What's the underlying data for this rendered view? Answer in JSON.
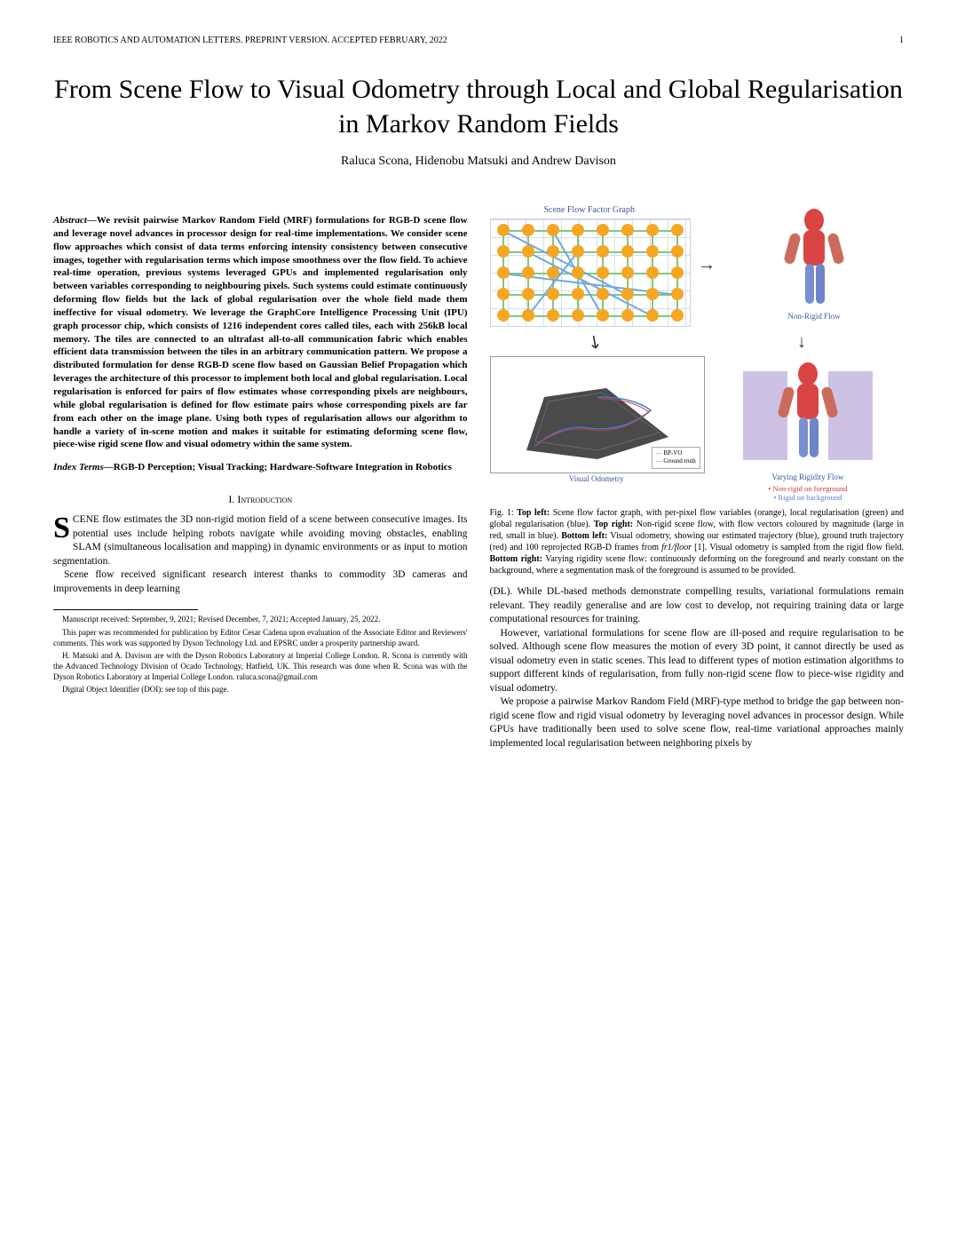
{
  "header": {
    "journal": "IEEE ROBOTICS AND AUTOMATION LETTERS. PREPRINT VERSION. ACCEPTED FEBRUARY, 2022",
    "page": "1"
  },
  "title": "From Scene Flow to Visual Odometry through Local and Global Regularisation in Markov Random Fields",
  "authors": "Raluca Scona, Hidenobu Matsuki and Andrew Davison",
  "abstract_label": "Abstract—",
  "abstract": "We revisit pairwise Markov Random Field (MRF) formulations for RGB-D scene flow and leverage novel advances in processor design for real-time implementations. We consider scene flow approaches which consist of data terms enforcing intensity consistency between consecutive images, together with regularisation terms which impose smoothness over the flow field. To achieve real-time operation, previous systems leveraged GPUs and implemented regularisation only between variables corresponding to neighbouring pixels. Such systems could estimate continuously deforming flow fields but the lack of global regularisation over the whole field made them ineffective for visual odometry. We leverage the GraphCore Intelligence Processing Unit (IPU) graph processor chip, which consists of 1216 independent cores called tiles, each with 256kB local memory. The tiles are connected to an ultrafast all-to-all communication fabric which enables efficient data transmission between the tiles in an arbitrary communication pattern. We propose a distributed formulation for dense RGB-D scene flow based on Gaussian Belief Propagation which leverages the architecture of this processor to implement both local and global regularisation. Local regularisation is enforced for pairs of flow estimates whose corresponding pixels are neighbours, while global regularisation is defined for flow estimate pairs whose corresponding pixels are far from each other on the image plane. Using both types of regularisation allows our algorithm to handle a variety of in-scene motion and makes it suitable for estimating deforming scene flow, piece-wise rigid scene flow and visual odometry within the same system.",
  "index_label": "Index Terms—",
  "index_terms": "RGB-D Perception; Visual Tracking; Hardware-Software Integration in Robotics",
  "section1_num": "I.",
  "section1_title": "Introduction",
  "intro_first_letter": "S",
  "intro_first_rest": "CENE flow estimates the 3D non-rigid motion field of a scene between consecutive images. Its potential uses include helping robots navigate while avoiding moving obstacles, enabling SLAM (simultaneous localisation and mapping) in dynamic environments or as input to motion segmentation.",
  "intro_p2": "Scene flow received significant research interest thanks to commodity 3D cameras and improvements in deep learning",
  "footnotes": {
    "f1": "Manuscript received: September, 9, 2021; Revised December, 7, 2021; Accepted January, 25, 2022.",
    "f2": "This paper was recommended for publication by Editor Cesar Cadena upon evaluation of the Associate Editor and Reviewers' comments. This work was supported by Dyson Technology Ltd. and EPSRC under a prosperity partnership award.",
    "f3": "H. Matsuki and A. Davison are with the Dyson Robotics Laboratory at Imperial College London. R. Scona is currently with the Advanced Technology Division of Ocado Technology, Hatfield, UK. This research was done when R. Scona was with the Dyson Robotics Laboratory at Imperial College London. raluca.scona@gmail.com",
    "f4": "Digital Object Identifier (DOI): see top of this page."
  },
  "figure1": {
    "panel_titles": {
      "tl": "Scene Flow Factor Graph",
      "tr": "Non-Rigid Flow",
      "bl": "Visual Odometry",
      "br": "Varying Rigidity Flow"
    },
    "br_bullets": {
      "b1": "Non-rigid on foreground",
      "b2": "Rigid on background"
    },
    "legend": {
      "l1": "BP-VO",
      "l2": "Ground truth"
    },
    "caption_label": "Fig. 1:",
    "caption": " Top left: Scene flow factor graph, with per-pixel flow variables (orange), local regularisation (green) and global regularisation (blue). Top right: Non-rigid scene flow, with flow vectors coloured by magnitude (large in red, small in blue). Bottom left: Visual odometry, showing our estimated trajectory (blue), ground truth trajectory (red) and 100 reprojected RGB-D frames from fr1/floor [1]. Visual odometry is sampled from the rigid flow field. Bottom right: Varying rigidity scene flow: continuously deforming on the foreground and nearly constant on the background, where a segmentation mask of the foreground is assumed to be provided.",
    "graph": {
      "node_color": "#f5a623",
      "local_edge_color": "#7fc97f",
      "global_edge_color": "#6fa8dc",
      "rows": 5,
      "cols": 8
    },
    "silhouette_colors": {
      "red": "#d94545",
      "blue": "#5b7bd5",
      "purple": "#a077c9"
    }
  },
  "col2_p1": "(DL). While DL-based methods demonstrate compelling results, variational formulations remain relevant. They readily generalise and are low cost to develop, not requiring training data or large computational resources for training.",
  "col2_p2": "However, variational formulations for scene flow are ill-posed and require regularisation to be solved. Although scene flow measures the motion of every 3D point, it cannot directly be used as visual odometry even in static scenes. This lead to different types of motion estimation algorithms to support different kinds of regularisation, from fully non-rigid scene flow to piece-wise rigidity and visual odometry.",
  "col2_p3": "We propose a pairwise Markov Random Field (MRF)-type method to bridge the gap between non-rigid scene flow and rigid visual odometry by leveraging novel advances in processor design. While GPUs have traditionally been used to solve scene flow, real-time variational approaches mainly implemented local regularisation between neighboring pixels by"
}
